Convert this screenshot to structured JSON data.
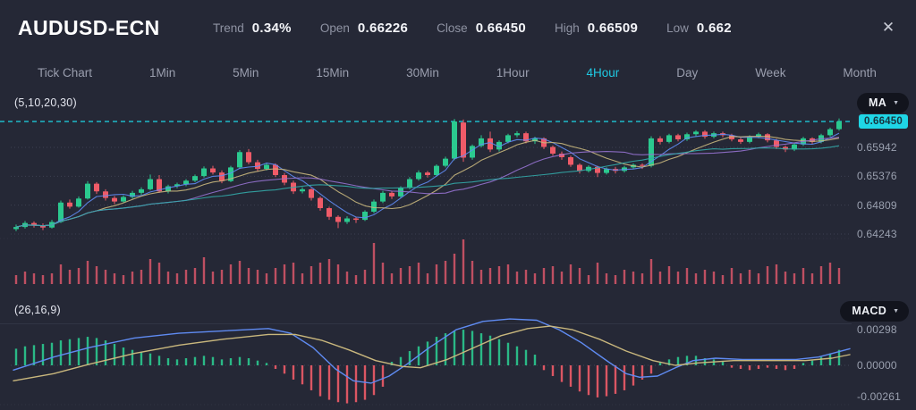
{
  "header": {
    "symbol": "AUDUSD-ECN",
    "stats": [
      {
        "label": "Trend",
        "value": "0.34%"
      },
      {
        "label": "Open",
        "value": "0.66226"
      },
      {
        "label": "Close",
        "value": "0.66450"
      },
      {
        "label": "High",
        "value": "0.66509"
      },
      {
        "label": "Low",
        "value": "0.662"
      }
    ],
    "close_icon": "✕"
  },
  "tabs": {
    "items": [
      "Tick Chart",
      "1Min",
      "5Min",
      "15Min",
      "30Min",
      "1Hour",
      "4Hour",
      "Day",
      "Week",
      "Month"
    ],
    "active": "4Hour"
  },
  "main_chart": {
    "indicator_label": "(5,10,20,30)",
    "dropdown_label": "MA",
    "dropdown_caret": "▼",
    "last_price_label": "0.66450",
    "axis_labels": [
      "0.65942",
      "0.65376",
      "0.64809",
      "0.64243"
    ]
  },
  "macd_panel": {
    "indicator_label": "(26,16,9)",
    "dropdown_label": "MACD",
    "dropdown_caret": "▼",
    "axis_labels": [
      "0.00298",
      "0.00000",
      "-0.00261"
    ]
  },
  "colors": {
    "background": "#252836",
    "bull": "#2bc98f",
    "bear": "#ef5b68",
    "volume": "#d9566a",
    "accent_cyan": "#1fd6e6",
    "grid": "#5a5f72",
    "pane_line": "#3c4050",
    "ma": [
      "#5f8bf2",
      "#c9b77d",
      "#9571cf",
      "#33a8a8"
    ],
    "macd_line": "#5f8bf2",
    "macd_signal": "#c9b77d"
  },
  "chart_data": {
    "type": "candlestick",
    "symbol": "AUDUSD-ECN",
    "timeframe": "4Hour",
    "last_price": 0.6645,
    "price_axis": [
      0.6645,
      0.65942,
      0.65376,
      0.64809,
      0.64243
    ],
    "ma_periods": [
      5,
      10,
      20,
      30
    ],
    "macd_params": [
      26,
      16,
      9
    ],
    "macd_axis": [
      0.00298,
      0.0,
      -0.00261
    ],
    "candles": [
      [
        0.6434,
        0.6443,
        0.643,
        0.6438
      ],
      [
        0.6438,
        0.645,
        0.6435,
        0.6446
      ],
      [
        0.6446,
        0.6449,
        0.6437,
        0.6441
      ],
      [
        0.6441,
        0.6445,
        0.6432,
        0.6437
      ],
      [
        0.6437,
        0.6452,
        0.6435,
        0.6448
      ],
      [
        0.6448,
        0.649,
        0.6446,
        0.6486
      ],
      [
        0.6486,
        0.6492,
        0.6474,
        0.6478
      ],
      [
        0.6478,
        0.6498,
        0.6476,
        0.6494
      ],
      [
        0.6494,
        0.6528,
        0.6492,
        0.6523
      ],
      [
        0.6523,
        0.6526,
        0.6503,
        0.6508
      ],
      [
        0.6508,
        0.6512,
        0.649,
        0.6495
      ],
      [
        0.6495,
        0.6499,
        0.6483,
        0.6488
      ],
      [
        0.6488,
        0.65,
        0.6486,
        0.6497
      ],
      [
        0.6497,
        0.6509,
        0.6494,
        0.6505
      ],
      [
        0.6505,
        0.6516,
        0.6501,
        0.6512
      ],
      [
        0.6512,
        0.6541,
        0.651,
        0.6532
      ],
      [
        0.6532,
        0.654,
        0.6505,
        0.6508
      ],
      [
        0.6508,
        0.6521,
        0.6504,
        0.6518
      ],
      [
        0.6518,
        0.6525,
        0.6514,
        0.6522
      ],
      [
        0.6522,
        0.6532,
        0.6518,
        0.6529
      ],
      [
        0.6529,
        0.6541,
        0.6526,
        0.6538
      ],
      [
        0.6538,
        0.6557,
        0.6535,
        0.6553
      ],
      [
        0.6553,
        0.6558,
        0.6541,
        0.6545
      ],
      [
        0.6545,
        0.6549,
        0.6524,
        0.6528
      ],
      [
        0.6528,
        0.6558,
        0.6526,
        0.6555
      ],
      [
        0.6555,
        0.6589,
        0.6552,
        0.6585
      ],
      [
        0.6585,
        0.6591,
        0.6561,
        0.6565
      ],
      [
        0.6565,
        0.657,
        0.6547,
        0.6552
      ],
      [
        0.6552,
        0.6564,
        0.6549,
        0.656
      ],
      [
        0.656,
        0.6563,
        0.6536,
        0.654
      ],
      [
        0.654,
        0.6544,
        0.652,
        0.6525
      ],
      [
        0.6525,
        0.6529,
        0.6503,
        0.6508
      ],
      [
        0.6508,
        0.6516,
        0.6504,
        0.6512
      ],
      [
        0.6512,
        0.6514,
        0.649,
        0.6495
      ],
      [
        0.6495,
        0.6498,
        0.647,
        0.6475
      ],
      [
        0.6475,
        0.6478,
        0.6452,
        0.6458
      ],
      [
        0.6458,
        0.6461,
        0.6436,
        0.6448
      ],
      [
        0.6448,
        0.6459,
        0.6444,
        0.6455
      ],
      [
        0.6455,
        0.6458,
        0.6446,
        0.6452
      ],
      [
        0.6452,
        0.6471,
        0.645,
        0.6468
      ],
      [
        0.6468,
        0.6492,
        0.6465,
        0.6488
      ],
      [
        0.6488,
        0.6509,
        0.6485,
        0.6505
      ],
      [
        0.6505,
        0.6508,
        0.6493,
        0.6498
      ],
      [
        0.6498,
        0.6518,
        0.6495,
        0.6515
      ],
      [
        0.6515,
        0.6536,
        0.6512,
        0.6532
      ],
      [
        0.6532,
        0.6549,
        0.6529,
        0.6545
      ],
      [
        0.6545,
        0.6548,
        0.6535,
        0.654
      ],
      [
        0.654,
        0.6561,
        0.6537,
        0.6558
      ],
      [
        0.6558,
        0.6576,
        0.6555,
        0.6572
      ],
      [
        0.6572,
        0.665,
        0.6569,
        0.6645
      ],
      [
        0.6643,
        0.6649,
        0.6566,
        0.6574
      ],
      [
        0.6574,
        0.66,
        0.657,
        0.6597
      ],
      [
        0.6597,
        0.6618,
        0.6594,
        0.6612
      ],
      [
        0.6612,
        0.6625,
        0.6585,
        0.659
      ],
      [
        0.659,
        0.6608,
        0.6586,
        0.6605
      ],
      [
        0.6605,
        0.6621,
        0.6602,
        0.6618
      ],
      [
        0.6618,
        0.6626,
        0.6614,
        0.6622
      ],
      [
        0.6622,
        0.6625,
        0.6602,
        0.6606
      ],
      [
        0.6606,
        0.6615,
        0.6601,
        0.6612
      ],
      [
        0.6612,
        0.6614,
        0.6591,
        0.6595
      ],
      [
        0.6595,
        0.6598,
        0.6578,
        0.6582
      ],
      [
        0.6582,
        0.6586,
        0.657,
        0.6575
      ],
      [
        0.6575,
        0.6578,
        0.6556,
        0.656
      ],
      [
        0.656,
        0.6563,
        0.6543,
        0.6548
      ],
      [
        0.6548,
        0.6559,
        0.6545,
        0.6556
      ],
      [
        0.6556,
        0.6558,
        0.6536,
        0.6544
      ],
      [
        0.6544,
        0.6555,
        0.6541,
        0.6552
      ],
      [
        0.6552,
        0.6556,
        0.6543,
        0.6548
      ],
      [
        0.6548,
        0.6558,
        0.6545,
        0.6555
      ],
      [
        0.6555,
        0.6563,
        0.6552,
        0.656
      ],
      [
        0.656,
        0.6563,
        0.6552,
        0.6558
      ],
      [
        0.6558,
        0.6616,
        0.6555,
        0.6612
      ],
      [
        0.6612,
        0.6616,
        0.66,
        0.6605
      ],
      [
        0.6605,
        0.6621,
        0.6602,
        0.6618
      ],
      [
        0.6618,
        0.6621,
        0.6606,
        0.661
      ],
      [
        0.661,
        0.6623,
        0.6607,
        0.662
      ],
      [
        0.662,
        0.6628,
        0.6616,
        0.6625
      ],
      [
        0.6625,
        0.6628,
        0.6611,
        0.6615
      ],
      [
        0.6615,
        0.6625,
        0.6612,
        0.6622
      ],
      [
        0.6622,
        0.6625,
        0.6614,
        0.6618
      ],
      [
        0.6618,
        0.6621,
        0.6606,
        0.661
      ],
      [
        0.661,
        0.6613,
        0.6601,
        0.6605
      ],
      [
        0.6605,
        0.6618,
        0.6602,
        0.6615
      ],
      [
        0.6615,
        0.6623,
        0.6612,
        0.662
      ],
      [
        0.662,
        0.6622,
        0.6604,
        0.6608
      ],
      [
        0.6608,
        0.6611,
        0.6591,
        0.6595
      ],
      [
        0.6595,
        0.6598,
        0.6585,
        0.659
      ],
      [
        0.659,
        0.6603,
        0.6587,
        0.66
      ],
      [
        0.66,
        0.6615,
        0.6597,
        0.6612
      ],
      [
        0.6612,
        0.6614,
        0.6601,
        0.6605
      ],
      [
        0.6605,
        0.6621,
        0.6602,
        0.6618
      ],
      [
        0.6618,
        0.6633,
        0.6615,
        0.663
      ],
      [
        0.663,
        0.6651,
        0.6627,
        0.6645
      ]
    ],
    "volume": [
      10,
      14,
      12,
      10,
      12,
      22,
      16,
      18,
      26,
      20,
      16,
      12,
      10,
      14,
      16,
      28,
      24,
      14,
      12,
      16,
      18,
      30,
      14,
      16,
      22,
      26,
      18,
      16,
      12,
      18,
      22,
      24,
      12,
      20,
      24,
      28,
      22,
      14,
      10,
      16,
      46,
      24,
      12,
      18,
      20,
      24,
      12,
      22,
      26,
      34,
      50,
      26,
      16,
      18,
      20,
      22,
      14,
      16,
      12,
      18,
      20,
      14,
      22,
      18,
      10,
      24,
      12,
      10,
      16,
      14,
      12,
      28,
      14,
      20,
      14,
      18,
      12,
      16,
      14,
      10,
      18,
      12,
      16,
      12,
      20,
      22,
      14,
      12,
      18,
      12,
      20,
      24,
      18
    ],
    "macd_histogram": [
      0.0014,
      0.0016,
      0.0017,
      0.0018,
      0.0019,
      0.0021,
      0.0022,
      0.0023,
      0.0024,
      0.0023,
      0.0021,
      0.0018,
      0.0015,
      0.0013,
      0.0011,
      0.001,
      0.0008,
      0.0006,
      0.0005,
      0.0006,
      0.0007,
      0.0008,
      0.0007,
      0.0005,
      0.0006,
      0.0007,
      0.0006,
      0.0004,
      0.0002,
      -0.0003,
      -0.0007,
      -0.0012,
      -0.0016,
      -0.0021,
      -0.0026,
      -0.0029,
      -0.0031,
      -0.0032,
      -0.0031,
      -0.0029,
      -0.0025,
      -0.0018,
      0.0003,
      0.0007,
      0.0012,
      0.0016,
      0.002,
      0.0024,
      0.0027,
      0.0029,
      0.003,
      0.0029,
      0.0027,
      0.0025,
      0.0022,
      0.0019,
      0.0016,
      0.0013,
      0.0009,
      -0.0004,
      -0.0009,
      -0.0014,
      -0.0018,
      -0.0022,
      -0.0025,
      -0.0027,
      -0.0026,
      -0.0024,
      -0.0021,
      -0.0017,
      -0.0012,
      -0.0007,
      0.0003,
      0.0005,
      0.0007,
      0.0008,
      0.0008,
      0.0006,
      0.0005,
      0.0003,
      -0.0002,
      -0.0003,
      -0.0004,
      -0.0003,
      -0.0002,
      -0.0003,
      -0.0004,
      -0.0003,
      0.0002,
      0.0004,
      0.0007,
      0.001,
      0.0013
    ],
    "macd_line": [
      [
        15,
        -0.0004
      ],
      [
        60,
        0.0007
      ],
      [
        100,
        0.0015
      ],
      [
        150,
        0.0023
      ],
      [
        200,
        0.0027
      ],
      [
        250,
        0.0029
      ],
      [
        300,
        0.0031
      ],
      [
        325,
        0.0027
      ],
      [
        350,
        0.0015
      ],
      [
        375,
        -0.0003
      ],
      [
        395,
        -0.0013
      ],
      [
        415,
        -0.0015
      ],
      [
        435,
        -0.0009
      ],
      [
        455,
        0.0001
      ],
      [
        480,
        0.0015
      ],
      [
        510,
        0.003
      ],
      [
        540,
        0.0037
      ],
      [
        570,
        0.0039
      ],
      [
        600,
        0.0038
      ],
      [
        625,
        0.003
      ],
      [
        650,
        0.0019
      ],
      [
        680,
        0.0003
      ],
      [
        700,
        -0.0007
      ],
      [
        715,
        -0.001
      ],
      [
        735,
        -0.0009
      ],
      [
        755,
        -0.0002
      ],
      [
        775,
        0.0004
      ],
      [
        800,
        0.0006
      ],
      [
        830,
        0.0005
      ],
      [
        860,
        0.0005
      ],
      [
        890,
        0.0005
      ],
      [
        915,
        0.0007
      ],
      [
        935,
        0.0011
      ],
      [
        950,
        0.0014
      ]
    ],
    "macd_signal": [
      [
        15,
        -0.0013
      ],
      [
        60,
        -0.0007
      ],
      [
        100,
        0.0001
      ],
      [
        150,
        0.001
      ],
      [
        200,
        0.0017
      ],
      [
        250,
        0.0022
      ],
      [
        300,
        0.0026
      ],
      [
        330,
        0.0026
      ],
      [
        360,
        0.0021
      ],
      [
        390,
        0.0013
      ],
      [
        420,
        0.0004
      ],
      [
        450,
        -0.0001
      ],
      [
        470,
        -0.0002
      ],
      [
        500,
        0.0005
      ],
      [
        530,
        0.0015
      ],
      [
        560,
        0.0025
      ],
      [
        590,
        0.0031
      ],
      [
        615,
        0.0033
      ],
      [
        640,
        0.003
      ],
      [
        670,
        0.0022
      ],
      [
        700,
        0.0012
      ],
      [
        730,
        0.0004
      ],
      [
        755,
        0.0
      ],
      [
        780,
        0.0002
      ],
      [
        820,
        0.0004
      ],
      [
        860,
        0.0004
      ],
      [
        900,
        0.0004
      ],
      [
        930,
        0.0006
      ],
      [
        950,
        0.0009
      ]
    ]
  }
}
